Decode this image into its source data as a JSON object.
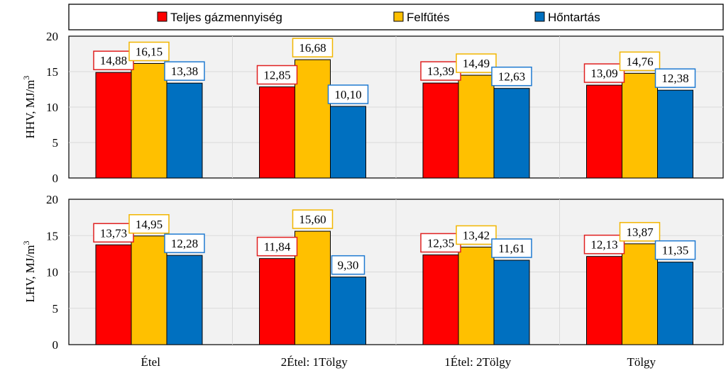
{
  "chart_data": {
    "type": "bar",
    "categories": [
      "Étel",
      "2Étel: 1Tölgy",
      "1Étel: 2Tölgy",
      "Tölgy"
    ],
    "legend": [
      {
        "name": "Teljes gázmennyiség",
        "color": "#ff0000",
        "label_border": "#e02020"
      },
      {
        "name": "Felfűtés",
        "color": "#ffc000",
        "label_border": "#f2b600"
      },
      {
        "name": "Hőntartás",
        "color": "#0070c0",
        "label_border": "#1f7ad1"
      }
    ],
    "panels": [
      {
        "ylabel_main": "HHV, MJ/m",
        "ylabel_sup": "3",
        "ylim": [
          0,
          20
        ],
        "yticks": [
          "0",
          "5",
          "10",
          "15",
          "20"
        ],
        "series": [
          {
            "name": "Teljes gázmennyiség",
            "values": [
              14.88,
              12.85,
              13.39,
              13.09
            ],
            "labels": [
              "14,88",
              "12,85",
              "13,39",
              "13,09"
            ]
          },
          {
            "name": "Felfűtés",
            "values": [
              16.15,
              16.68,
              14.49,
              14.76
            ],
            "labels": [
              "16,15",
              "16,68",
              "14,49",
              "14,76"
            ]
          },
          {
            "name": "Hőntartás",
            "values": [
              13.38,
              10.1,
              12.63,
              12.38
            ],
            "labels": [
              "13,38",
              "10,10",
              "12,63",
              "12,38"
            ]
          }
        ]
      },
      {
        "ylabel_main": "LHV, MJ/m",
        "ylabel_sup": "3",
        "ylim": [
          0,
          20
        ],
        "yticks": [
          "0",
          "5",
          "10",
          "15",
          "20"
        ],
        "series": [
          {
            "name": "Teljes gázmennyiség",
            "values": [
              13.73,
              11.84,
              12.35,
              12.13
            ],
            "labels": [
              "13,73",
              "11,84",
              "12,35",
              "12,13"
            ]
          },
          {
            "name": "Felfűtés",
            "values": [
              14.95,
              15.6,
              13.42,
              13.87
            ],
            "labels": [
              "14,95",
              "15,60",
              "13,42",
              "13,87"
            ]
          },
          {
            "name": "Hőntartás",
            "values": [
              12.28,
              9.3,
              11.61,
              11.35
            ],
            "labels": [
              "12,28",
              "9,30",
              "11,61",
              "11,35"
            ]
          }
        ]
      }
    ]
  }
}
